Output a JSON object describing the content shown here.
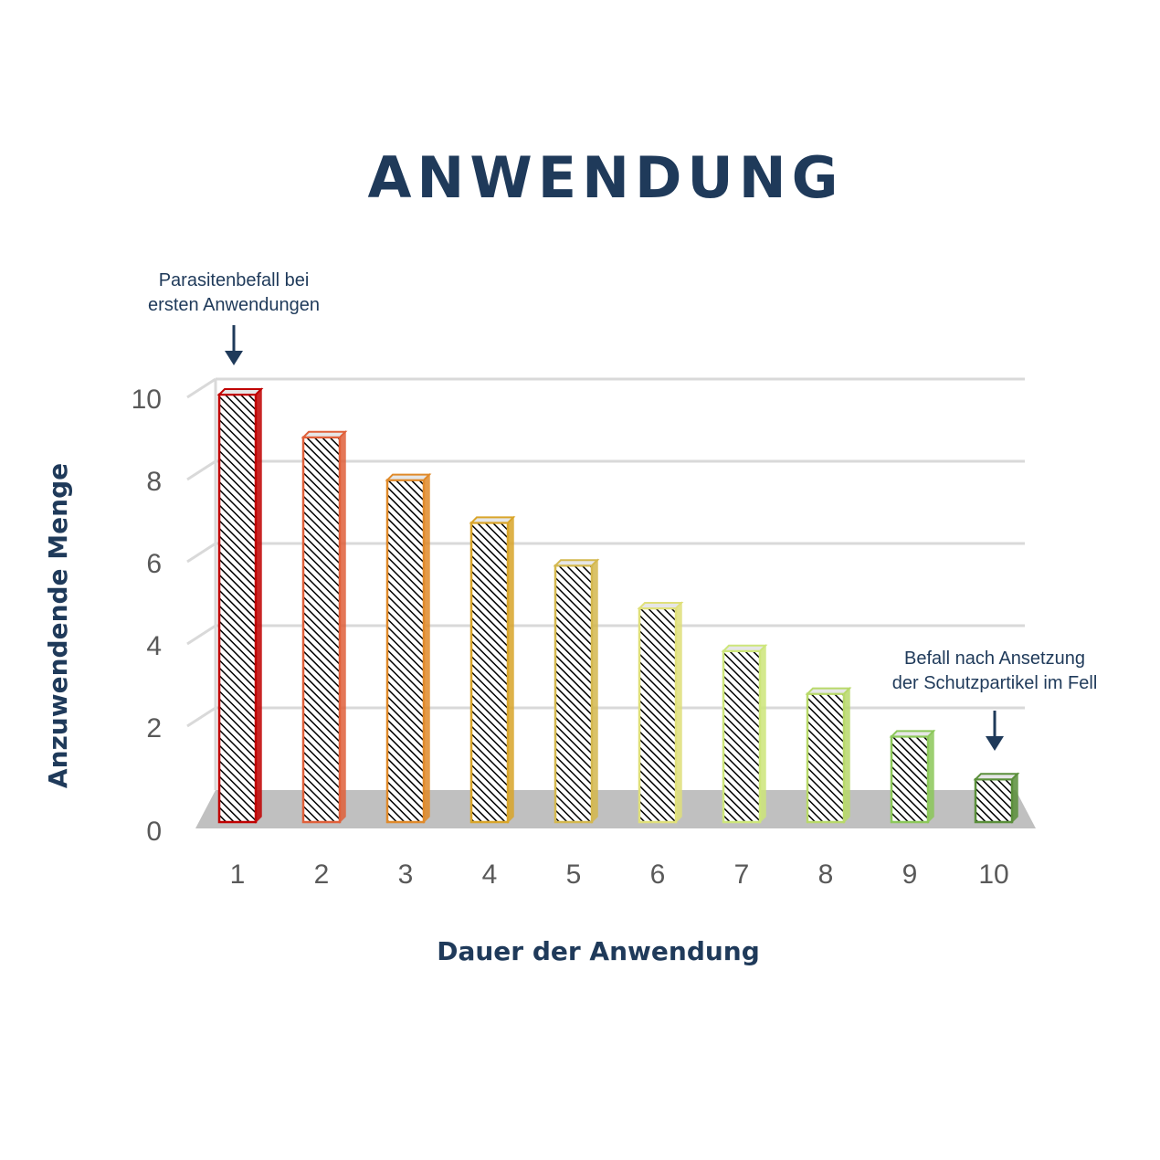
{
  "chart_data": {
    "type": "bar",
    "title": "ANWENDUNG",
    "xlabel": "Dauer der Anwendung",
    "ylabel": "Anzuwendende Menge",
    "categories": [
      "1",
      "2",
      "3",
      "4",
      "5",
      "6",
      "7",
      "8",
      "9",
      "10"
    ],
    "values": [
      10,
      9,
      8,
      7,
      6,
      5,
      4,
      3,
      2,
      1
    ],
    "yticks": [
      "0",
      "2",
      "4",
      "6",
      "8",
      "10"
    ],
    "ylim": [
      0,
      10
    ],
    "grid": true,
    "bar_colors": [
      "#c00000",
      "#e0603a",
      "#e08a2a",
      "#d9a52a",
      "#d4b84e",
      "#e0e07a",
      "#cde67a",
      "#b8d96a",
      "#8cc85a",
      "#5a8f3a"
    ],
    "annotations": [
      {
        "lines": [
          "Parasitenbefall bei",
          "ersten Anwendungen"
        ],
        "category": "1"
      },
      {
        "lines": [
          "Befall nach Ansetzung",
          "der Schutzpartikel im Fell"
        ],
        "category": "10"
      }
    ]
  }
}
